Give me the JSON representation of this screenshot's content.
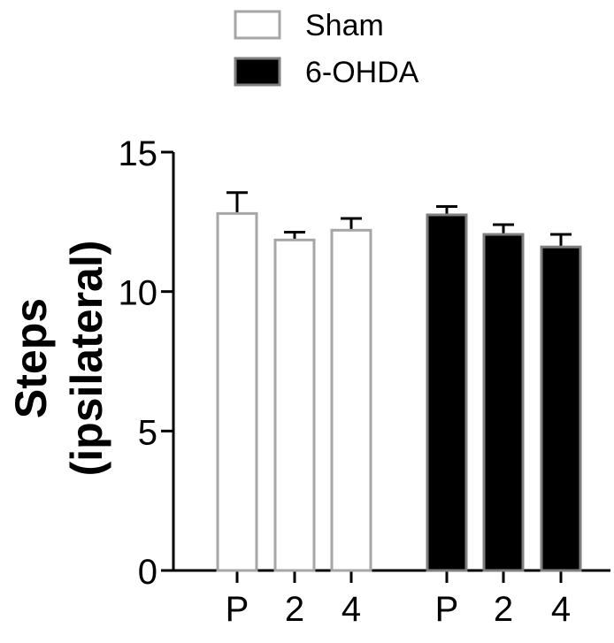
{
  "chart_data": {
    "type": "bar",
    "title": "",
    "xlabel": "",
    "ylabel": [
      "Steps",
      "(ipsilateral)"
    ],
    "ylim": [
      0,
      15
    ],
    "yticks": [
      "0",
      "5",
      "10",
      "15"
    ],
    "grid": false,
    "legend_position": "top-center",
    "categories": [
      "P",
      "2",
      "4"
    ],
    "series": [
      {
        "name": "Sham",
        "fill": "#ffffff",
        "stroke": "#a6a6a6",
        "values": [
          12.8,
          11.85,
          12.2
        ],
        "errors": [
          0.75,
          0.28,
          0.42
        ]
      },
      {
        "name": "6-OHDA",
        "fill": "#000000",
        "stroke": "#7f7f7f",
        "values": [
          12.75,
          12.05,
          11.6
        ],
        "errors": [
          0.3,
          0.35,
          0.45
        ]
      }
    ]
  },
  "colors": {
    "axis": "#000000",
    "errorbar": "#000000"
  }
}
